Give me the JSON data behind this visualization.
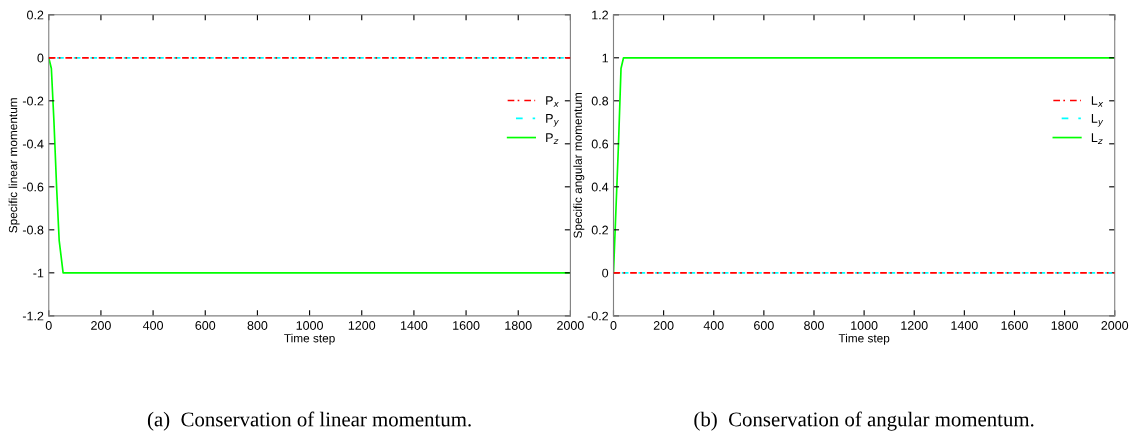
{
  "chart_data": [
    {
      "type": "line",
      "xlabel": "Time step",
      "ylabel": "Specific linear momentum",
      "xlim": [
        0,
        2000
      ],
      "xticks": [
        0,
        200,
        400,
        600,
        800,
        1000,
        1200,
        1400,
        1600,
        1800,
        2000
      ],
      "ylim": [
        -1.2,
        0.2
      ],
      "yticks": [
        -1.2,
        -1,
        -0.8,
        -0.6,
        -0.4,
        -0.2,
        0,
        0.2
      ],
      "legend": "right",
      "grid": false,
      "annotations": [
        "(a)  Conservation of linear momentum."
      ],
      "series": [
        {
          "name": "P$_{x}$",
          "color": "#ff0000",
          "line_style": "dashed",
          "x": [
            0,
            2000
          ],
          "values": [
            0,
            0
          ]
        },
        {
          "name": "P$_{y}$",
          "color": "#00ffff",
          "line_style": "dashed",
          "x": [
            0,
            2000
          ],
          "values": [
            0,
            0
          ]
        },
        {
          "name": "P$_{z}$",
          "color": "#00ff00",
          "line_style": "solid",
          "x": [
            0,
            10,
            20,
            30,
            40,
            55,
            2000
          ],
          "values": [
            0,
            -0.05,
            -0.3,
            -0.6,
            -0.85,
            -1,
            -1
          ]
        }
      ]
    },
    {
      "type": "line",
      "xlabel": "Time step",
      "ylabel": "Specific angular momentum",
      "xlim": [
        0,
        2000
      ],
      "xticks": [
        0,
        200,
        400,
        600,
        800,
        1000,
        1200,
        1400,
        1600,
        1800,
        2000
      ],
      "ylim": [
        -0.2,
        1.2
      ],
      "yticks": [
        -0.2,
        0,
        0.2,
        0.4,
        0.6,
        0.8,
        1,
        1.2
      ],
      "legend": "right",
      "grid": false,
      "annotations": [
        "(b)  Conservation of angular momentum."
      ],
      "series": [
        {
          "name": "L$_{x}$",
          "color": "#ff0000",
          "line_style": "dashed",
          "x": [
            0,
            2000
          ],
          "values": [
            0,
            0
          ]
        },
        {
          "name": "L$_{y}$",
          "color": "#00ffff",
          "line_style": "dashed",
          "x": [
            0,
            2000
          ],
          "values": [
            0,
            0
          ]
        },
        {
          "name": "L$_{z}$",
          "color": "#00ff00",
          "line_style": "solid",
          "x": [
            0,
            10,
            20,
            30,
            40,
            2000
          ],
          "values": [
            0,
            0.3,
            0.6,
            0.95,
            1,
            1
          ]
        }
      ]
    }
  ]
}
